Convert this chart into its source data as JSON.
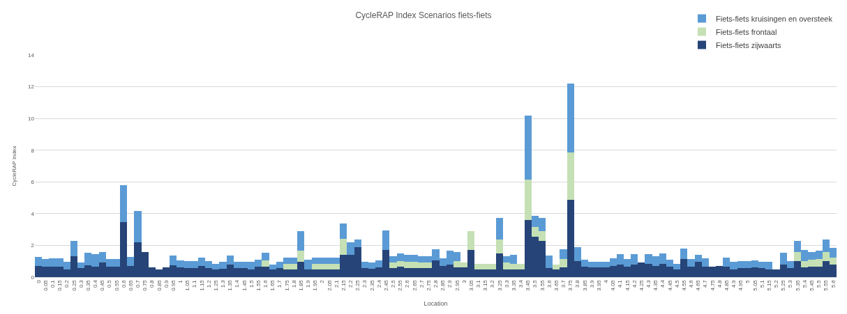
{
  "chart_data": {
    "type": "bar",
    "stacked": true,
    "title": "CycleRAP Index Scenarios fiets-fiets",
    "xlabel": "Location",
    "ylabel": "CycleRAP Index",
    "categories": [
      "0",
      "0.05",
      "0.1",
      "0.15",
      "0.2",
      "0.25",
      "0.3",
      "0.35",
      "0.4",
      "0.45",
      "0.5",
      "0.55",
      "0.6",
      "0.65",
      "0.7",
      "0.75",
      "0.8",
      "0.85",
      "0.9",
      "0.95",
      "1",
      "1.05",
      "1.1",
      "1.15",
      "1.2",
      "1.25",
      "1.3",
      "1.35",
      "1.4",
      "1.45",
      "1.5",
      "1.55",
      "1.6",
      "1.65",
      "1.7",
      "1.75",
      "1.8",
      "1.85",
      "1.9",
      "1.95",
      "2",
      "2.05",
      "2.1",
      "2.15",
      "2.2",
      "2.25",
      "2.3",
      "2.35",
      "2.4",
      "2.45",
      "2.5",
      "2.55",
      "2.6",
      "2.65",
      "2.7",
      "2.75",
      "2.8",
      "2.85",
      "2.9",
      "2.95",
      "3",
      "3.05",
      "3.1",
      "3.15",
      "3.2",
      "3.25",
      "3.3",
      "3.35",
      "3.4",
      "3.45",
      "3.5",
      "3.55",
      "3.6",
      "3.65",
      "3.7",
      "3.75",
      "3.8",
      "3.85",
      "3.9",
      "3.95",
      "4",
      "4.05",
      "4.1",
      "4.15",
      "4.2",
      "4.25",
      "4.3",
      "4.35",
      "4.4",
      "4.45",
      "4.5",
      "4.55",
      "4.6",
      "4.65",
      "4.7",
      "4.75",
      "4.8",
      "4.85",
      "4.9",
      "4.95",
      "5",
      "5.05",
      "5.1",
      "5.15",
      "5.2",
      "5.25",
      "5.3",
      "5.35",
      "5.4",
      "5.45",
      "5.5",
      "5.55",
      "5.6"
    ],
    "series": [
      {
        "name": "Fiets-fiets zijwaarts",
        "color": "#264478",
        "values": [
          0.7,
          0.65,
          0.65,
          0.65,
          0.5,
          1.3,
          0.55,
          0.75,
          0.68,
          0.92,
          0.65,
          0.65,
          3.45,
          0.7,
          2.2,
          1.6,
          0.6,
          0.5,
          0.6,
          0.75,
          0.6,
          0.55,
          0.55,
          0.7,
          0.55,
          0.5,
          0.52,
          0.8,
          0.55,
          0.55,
          0.5,
          0.65,
          0.68,
          0.48,
          0.55,
          0.5,
          0.5,
          0.95,
          0.48,
          0.48,
          0.48,
          0.48,
          0.48,
          1.4,
          1.4,
          1.9,
          0.55,
          0.52,
          0.6,
          1.7,
          0.55,
          0.65,
          0.55,
          0.55,
          0.55,
          0.55,
          1.05,
          0.7,
          0.8,
          0.6,
          0.62,
          1.7,
          0.5,
          0.5,
          0.5,
          1.5,
          0.5,
          0.5,
          0.5,
          3.6,
          2.55,
          2.3,
          0.55,
          0.5,
          0.6,
          4.85,
          1.0,
          0.65,
          0.6,
          0.6,
          0.6,
          0.72,
          0.8,
          0.68,
          0.8,
          0.9,
          0.85,
          0.72,
          0.85,
          0.65,
          0.5,
          1.15,
          0.65,
          0.95,
          0.65,
          0.65,
          0.7,
          0.65,
          0.5,
          0.55,
          0.55,
          0.6,
          0.55,
          0.5,
          0.5,
          0.8,
          0.55,
          1.0,
          0.6,
          0.65,
          0.65,
          1.0,
          0.8
        ]
      },
      {
        "name": "Fiets-fiets frontaal",
        "color": "#c5e0b4",
        "values": [
          0,
          0,
          0,
          0,
          0,
          0,
          0,
          0,
          0,
          0,
          0,
          0,
          0,
          0,
          0,
          0,
          0,
          0,
          0,
          0,
          0,
          0,
          0,
          0,
          0,
          0,
          0,
          0,
          0,
          0,
          0,
          0,
          0.37,
          0,
          0,
          0.35,
          0.35,
          0.7,
          0,
          0.35,
          0.35,
          0.35,
          0.35,
          1.0,
          0,
          0,
          0,
          0,
          0,
          0,
          0.35,
          0.35,
          0.4,
          0.4,
          0.35,
          0.35,
          0,
          0,
          0,
          0.4,
          0.28,
          1.2,
          0.35,
          0.35,
          0.35,
          0.85,
          0.4,
          0.35,
          0.35,
          2.55,
          0.6,
          0.6,
          0,
          0.3,
          0.55,
          3.0,
          0,
          0,
          0,
          0,
          0,
          0,
          0,
          0,
          0,
          0,
          0,
          0,
          0,
          0,
          0,
          0,
          0,
          0,
          0,
          0,
          0,
          0,
          0,
          0,
          0,
          0,
          0,
          0,
          0,
          0,
          0,
          0.6,
          0.4,
          0.45,
          0.5,
          0.6,
          0.45
        ]
      },
      {
        "name": "Fiets-fiets kruisingen en oversteek",
        "color": "#5b9bd5",
        "values": [
          0.58,
          0.5,
          0.53,
          0.53,
          0.45,
          0.98,
          0.37,
          0.8,
          0.77,
          0.68,
          0.5,
          0.5,
          2.33,
          0.58,
          1.95,
          0,
          0,
          0,
          0,
          0.6,
          0.45,
          0.45,
          0.45,
          0.55,
          0.47,
          0.35,
          0.45,
          0.58,
          0.42,
          0.42,
          0.45,
          0.45,
          0.5,
          0.32,
          0.4,
          0.4,
          0.4,
          1.23,
          0.6,
          0.4,
          0.4,
          0.4,
          0.4,
          1.0,
          0.8,
          0.45,
          0.4,
          0.4,
          0.45,
          1.22,
          0.4,
          0.5,
          0.45,
          0.45,
          0.4,
          0.4,
          0.7,
          0.5,
          0.85,
          0.6,
          0,
          0,
          0,
          0,
          0,
          1.4,
          0.4,
          0.55,
          0,
          4.05,
          0.7,
          0.85,
          0.8,
          0,
          0.6,
          4.35,
          0.9,
          0.45,
          0.35,
          0.35,
          0.35,
          0.48,
          0.65,
          0.47,
          0.65,
          0,
          0.6,
          0.58,
          0.65,
          0.45,
          0.35,
          0.65,
          0.5,
          0.45,
          0.55,
          0,
          0,
          0.6,
          0.45,
          0.45,
          0.45,
          0.45,
          0.4,
          0.45,
          0,
          0.75,
          0.45,
          0.7,
          0.7,
          0.5,
          0.5,
          0.75,
          0.6
        ]
      }
    ],
    "ylim": [
      0,
      14
    ],
    "yticks": [
      0,
      2,
      4,
      6,
      8,
      10,
      12,
      14
    ],
    "grid": "y",
    "legend": "top right"
  }
}
